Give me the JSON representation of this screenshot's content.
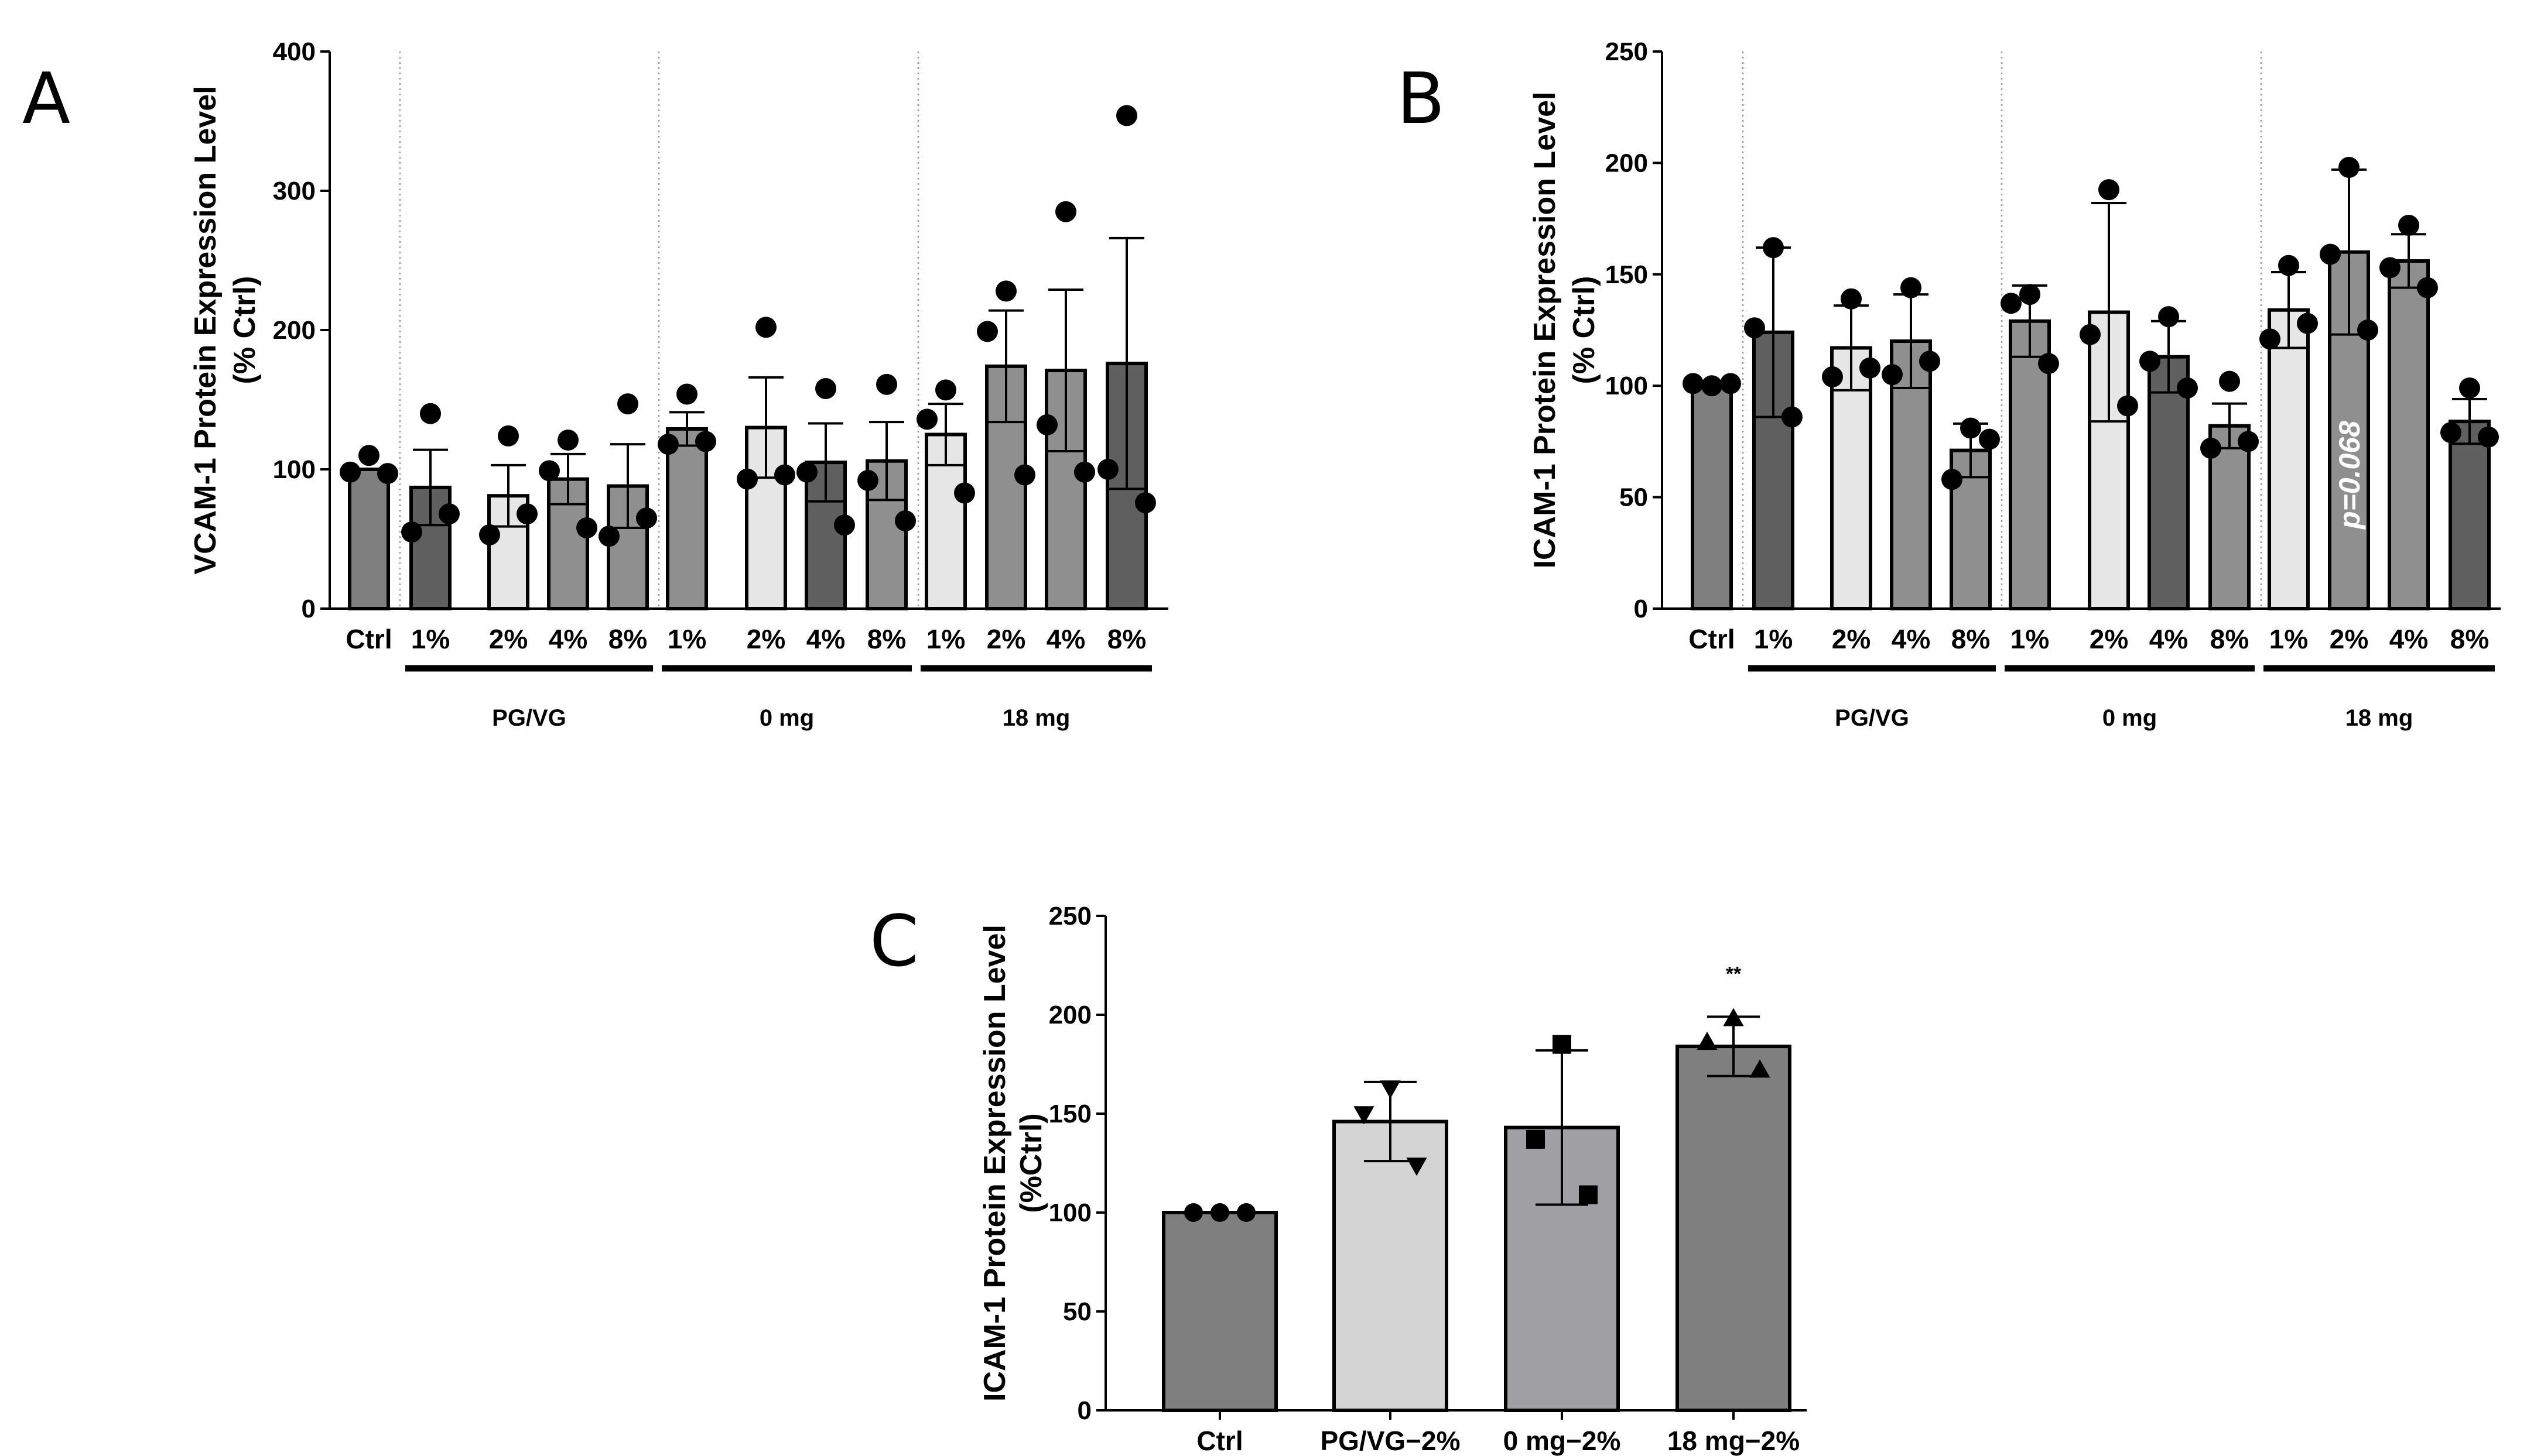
{
  "colors": {
    "ctrl": "#7f7f7f",
    "dark": "#5f5f5f",
    "mid": "#8f8f8f",
    "light": "#e6e6e6",
    "c_pgvg": "#d4d4d4",
    "c_0mg": "#a0a0a4",
    "c_18mg": "#7f7f7f",
    "marker": "#000000"
  },
  "chart_data": [
    {
      "type": "bar",
      "panel": "A",
      "ylabel_line1": "VCAM-1 Protein Expression Level",
      "ylabel_line2": "(% Ctrl)",
      "ylim": [
        0,
        400
      ],
      "yticks": [
        "0",
        "100",
        "200",
        "300",
        "400"
      ],
      "categories": [
        "Ctrl",
        "1%",
        "2%",
        "4%",
        "8%",
        "1%",
        "2%",
        "4%",
        "8%",
        "1%",
        "2%",
        "4%",
        "8%"
      ],
      "groups": [
        {
          "label": "PG/VG",
          "from": 1,
          "to": 4
        },
        {
          "label": "0 mg",
          "from": 5,
          "to": 8
        },
        {
          "label": "18 mg",
          "from": 9,
          "to": 12
        }
      ],
      "values": [
        100,
        87,
        81,
        93,
        88,
        129,
        130,
        105,
        106,
        125,
        174,
        171,
        176
      ],
      "errors": [
        0,
        27,
        22,
        18,
        30,
        12,
        36,
        28,
        28,
        22,
        40,
        58,
        90
      ],
      "points": [
        [
          110,
          98,
          97
        ],
        [
          140,
          55,
          68
        ],
        [
          124,
          53,
          68
        ],
        [
          121,
          99,
          58
        ],
        [
          147,
          52,
          65
        ],
        [
          154,
          118,
          120
        ],
        [
          202,
          93,
          96
        ],
        [
          158,
          98,
          60
        ],
        [
          161,
          92,
          63
        ],
        [
          157,
          136,
          83
        ],
        [
          228,
          199,
          96
        ],
        [
          285,
          132,
          98
        ],
        [
          354,
          100,
          76
        ]
      ],
      "shades": [
        "ctrl",
        "dark",
        "light",
        "mid",
        "mid",
        "mid",
        "light",
        "dark",
        "mid",
        "light",
        "mid",
        "mid",
        "dark"
      ],
      "annotations": []
    },
    {
      "type": "bar",
      "panel": "B",
      "ylabel_line1": "ICAM-1 Protein Expression Level",
      "ylabel_line2": "(% Ctrl)",
      "ylim": [
        0,
        250
      ],
      "yticks": [
        "0",
        "50",
        "100",
        "150",
        "200",
        "250"
      ],
      "categories": [
        "Ctrl",
        "1%",
        "2%",
        "4%",
        "8%",
        "1%",
        "2%",
        "4%",
        "8%",
        "1%",
        "2%",
        "4%",
        "8%"
      ],
      "groups": [
        {
          "label": "PG/VG",
          "from": 1,
          "to": 4
        },
        {
          "label": "0 mg",
          "from": 5,
          "to": 8
        },
        {
          "label": "18 mg",
          "from": 9,
          "to": 12
        }
      ],
      "values": [
        100,
        124,
        117,
        120,
        71,
        129,
        133,
        113,
        82,
        134,
        160,
        156,
        84
      ],
      "errors": [
        0,
        38,
        19,
        21,
        12,
        16,
        49,
        16,
        10,
        17,
        37,
        12,
        10
      ],
      "points": [
        [
          100,
          101,
          101
        ],
        [
          162,
          126,
          86
        ],
        [
          139,
          104,
          108
        ],
        [
          144,
          105,
          111
        ],
        [
          81,
          58,
          76
        ],
        [
          141,
          137,
          110
        ],
        [
          188,
          123,
          91
        ],
        [
          131,
          111,
          99
        ],
        [
          102,
          72,
          75
        ],
        [
          154,
          121,
          128
        ],
        [
          198,
          159,
          125
        ],
        [
          172,
          153,
          144
        ],
        [
          99,
          79,
          77
        ]
      ],
      "shades": [
        "ctrl",
        "dark",
        "light",
        "mid",
        "mid",
        "mid",
        "light",
        "dark",
        "mid",
        "light",
        "mid",
        "mid",
        "dark"
      ],
      "annotations": [
        {
          "index": 10,
          "text": "p=0.068"
        }
      ]
    },
    {
      "type": "bar",
      "panel": "C",
      "ylabel_line1": "ICAM-1 Protein Expression Level",
      "ylabel_line2": "(%Ctrl)",
      "ylim": [
        0,
        250
      ],
      "yticks": [
        "0",
        "50",
        "100",
        "150",
        "200",
        "250"
      ],
      "categories": [
        "Ctrl",
        "PG/VG−2%",
        "0 mg−2%",
        "18 mg−2%"
      ],
      "values": [
        100,
        146,
        143,
        184
      ],
      "errors": [
        0,
        20,
        39,
        15
      ],
      "points": [
        [
          100,
          100,
          100
        ],
        [
          163,
          150,
          124
        ],
        [
          185,
          137,
          109
        ],
        [
          198,
          186,
          172
        ]
      ],
      "markers": [
        "circle",
        "triangle-down",
        "square",
        "triangle-up"
      ],
      "shades": [
        "c_18mg",
        "c_pgvg",
        "c_0mg",
        "c_18mg"
      ],
      "significance": [
        {
          "index": 3,
          "text": "**"
        }
      ]
    }
  ]
}
